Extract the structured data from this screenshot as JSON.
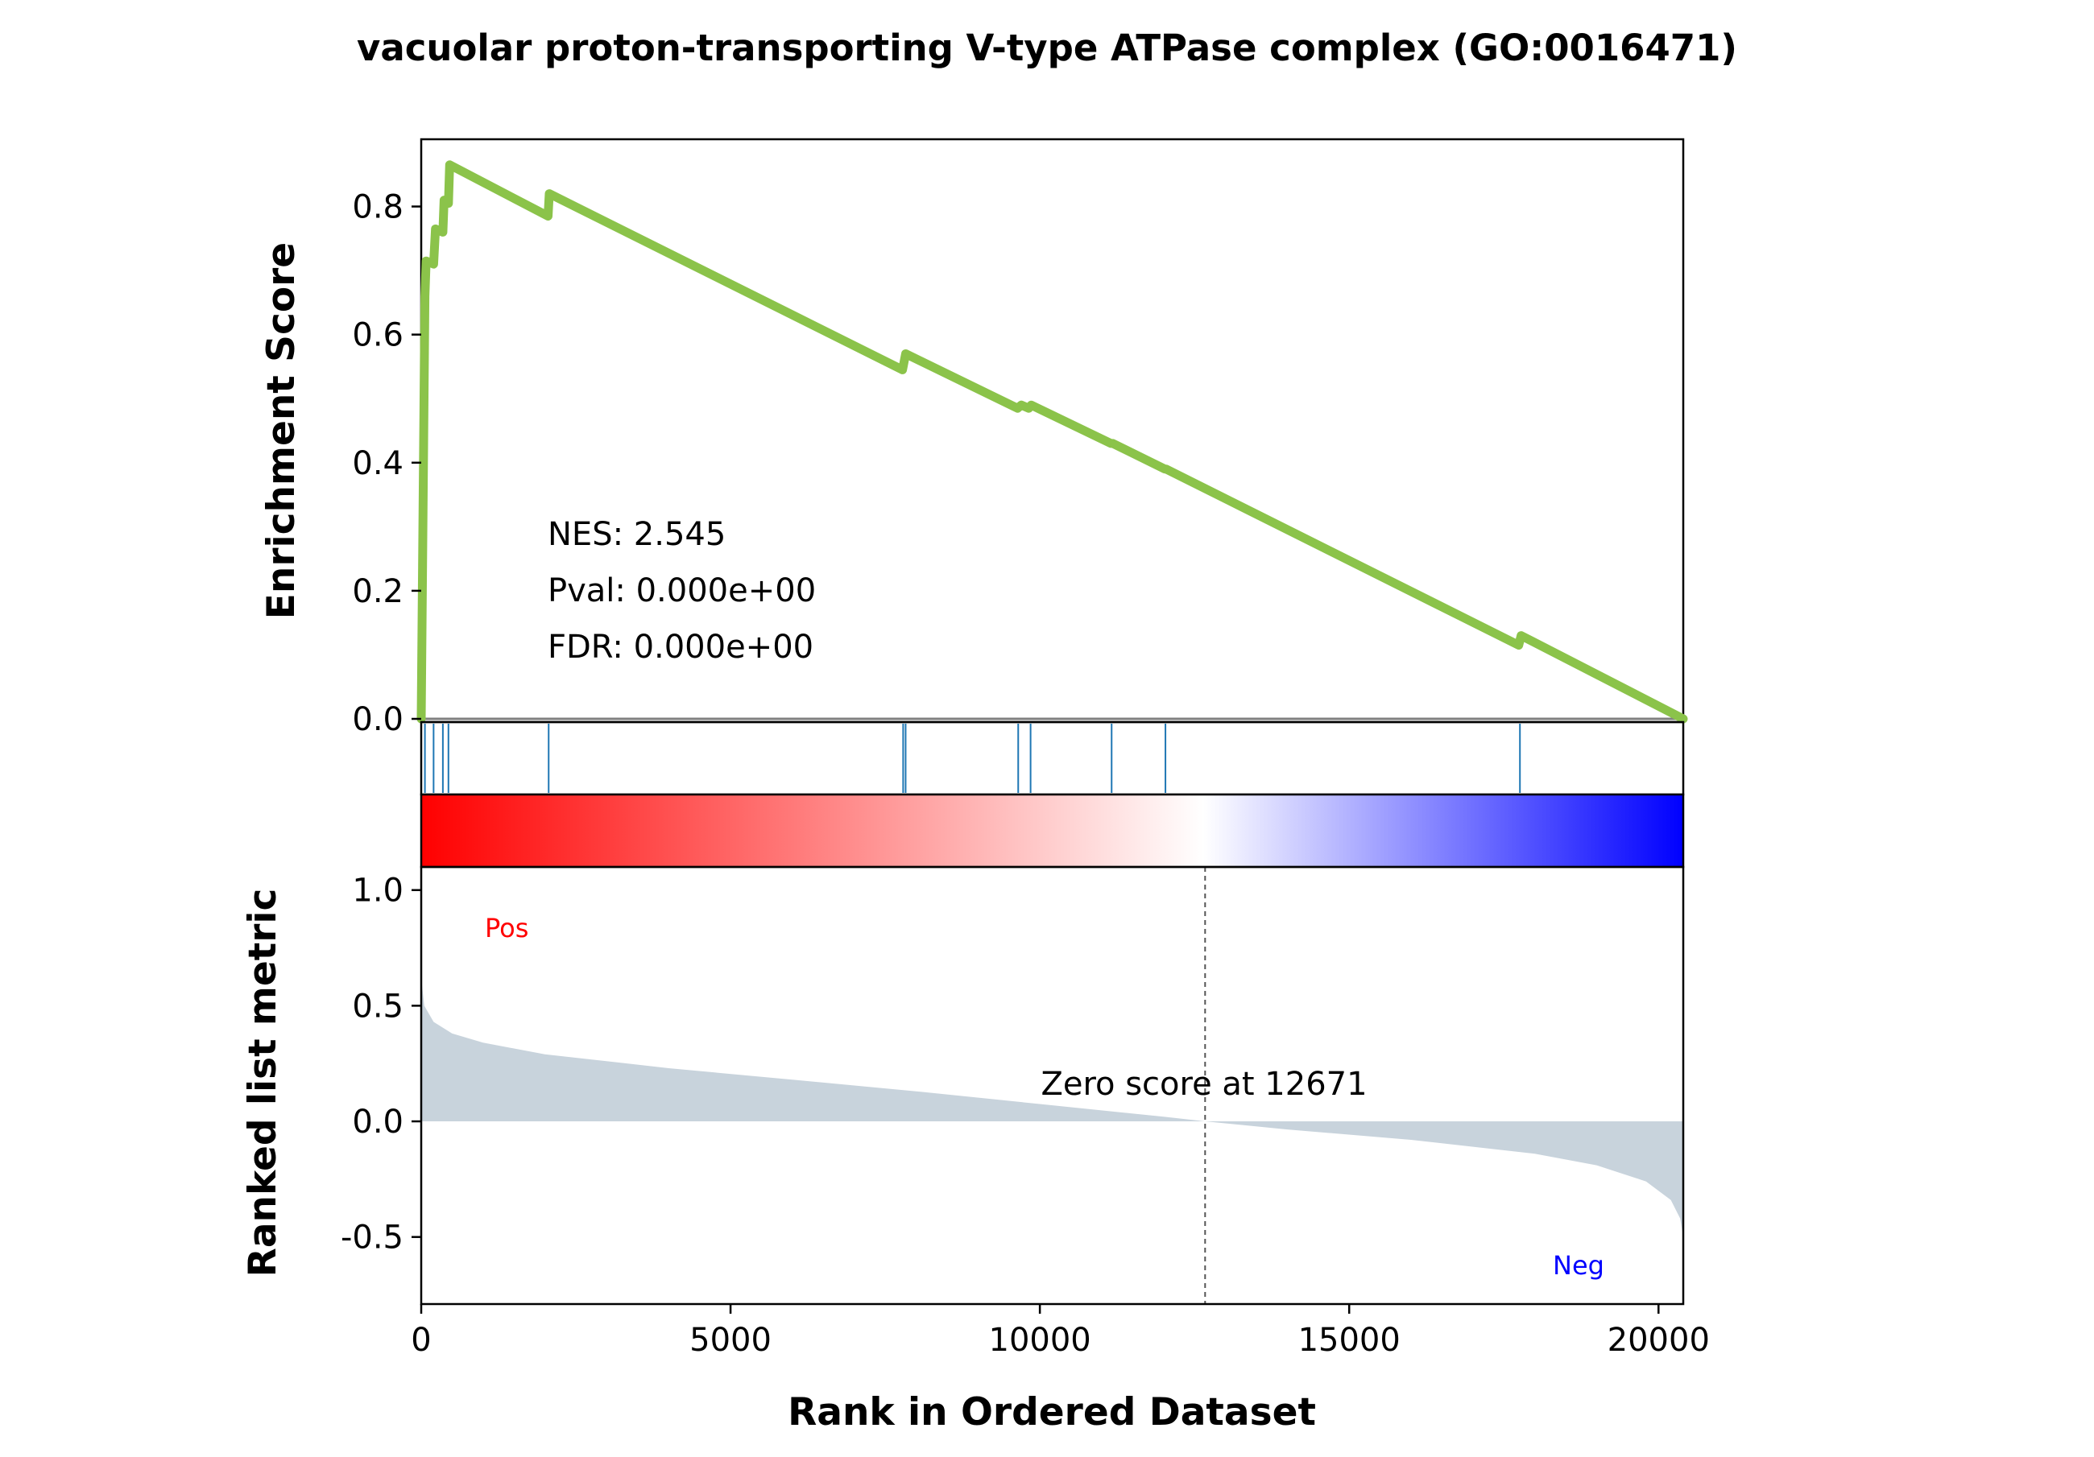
{
  "chart_data": {
    "type": "line",
    "title": "vacuolar proton-transporting V-type ATPase complex (GO:0016471)",
    "xlabel": "Rank in Ordered Dataset",
    "xlim": [
      0,
      20400
    ],
    "x_ticks": [
      "0",
      "5000",
      "10000",
      "15000",
      "20000"
    ],
    "panels": {
      "enrichment": {
        "ylabel": "Enrichment Score",
        "ylim": [
          -0.005,
          0.905
        ],
        "y_ticks": [
          "0.0",
          "0.2",
          "0.4",
          "0.6",
          "0.8"
        ],
        "line_color": "#8bc34a",
        "baseline_color": "#808080",
        "running_es": [
          {
            "x": 0,
            "y": 0.0
          },
          {
            "x": 60,
            "y": 0.66
          },
          {
            "x": 80,
            "y": 0.715
          },
          {
            "x": 200,
            "y": 0.71
          },
          {
            "x": 230,
            "y": 0.765
          },
          {
            "x": 350,
            "y": 0.76
          },
          {
            "x": 370,
            "y": 0.81
          },
          {
            "x": 440,
            "y": 0.805
          },
          {
            "x": 460,
            "y": 0.865
          },
          {
            "x": 2050,
            "y": 0.785
          },
          {
            "x": 2070,
            "y": 0.82
          },
          {
            "x": 7780,
            "y": 0.545
          },
          {
            "x": 7830,
            "y": 0.57
          },
          {
            "x": 9640,
            "y": 0.485
          },
          {
            "x": 9700,
            "y": 0.49
          },
          {
            "x": 9820,
            "y": 0.485
          },
          {
            "x": 9860,
            "y": 0.49
          },
          {
            "x": 11150,
            "y": 0.43
          },
          {
            "x": 11180,
            "y": 0.43
          },
          {
            "x": 12020,
            "y": 0.39
          },
          {
            "x": 12040,
            "y": 0.39
          },
          {
            "x": 17740,
            "y": 0.115
          },
          {
            "x": 17780,
            "y": 0.13
          },
          {
            "x": 20400,
            "y": 0.0
          }
        ],
        "stats": {
          "nes": "NES: 2.545",
          "pval": "Pval: 0.000e+00",
          "fdr": "FDR: 0.000e+00"
        }
      },
      "hits": {
        "color": "#1f77b4",
        "positions": [
          60,
          200,
          350,
          440,
          2060,
          7790,
          7830,
          9650,
          9850,
          11160,
          12030,
          17760
        ]
      },
      "ranked_metric": {
        "ylabel": "Ranked list metric",
        "ylim": [
          -0.79,
          1.1
        ],
        "y_ticks": [
          "-0.5",
          "0.0",
          "0.5",
          "1.0"
        ],
        "fill_color": "#c8d3dc",
        "curve": [
          {
            "x": 0,
            "y": 0.62
          },
          {
            "x": 50,
            "y": 0.5
          },
          {
            "x": 200,
            "y": 0.43
          },
          {
            "x": 500,
            "y": 0.38
          },
          {
            "x": 1000,
            "y": 0.34
          },
          {
            "x": 2000,
            "y": 0.29
          },
          {
            "x": 4000,
            "y": 0.23
          },
          {
            "x": 6000,
            "y": 0.18
          },
          {
            "x": 8000,
            "y": 0.13
          },
          {
            "x": 10000,
            "y": 0.075
          },
          {
            "x": 12000,
            "y": 0.02
          },
          {
            "x": 12671,
            "y": 0.0
          },
          {
            "x": 14000,
            "y": -0.035
          },
          {
            "x": 16000,
            "y": -0.08
          },
          {
            "x": 18000,
            "y": -0.14
          },
          {
            "x": 19000,
            "y": -0.19
          },
          {
            "x": 19800,
            "y": -0.26
          },
          {
            "x": 20200,
            "y": -0.34
          },
          {
            "x": 20350,
            "y": -0.42
          },
          {
            "x": 20400,
            "y": -0.5
          }
        ],
        "zero_rank": 12671,
        "zero_label": "Zero score at 12671",
        "pos_label": "Pos",
        "neg_label": "Neg",
        "pos_color": "#ff0000",
        "neg_color": "#0000ff",
        "gradient_colors": [
          "#ff0000",
          "#ffffff",
          "#0000ff"
        ]
      }
    }
  }
}
